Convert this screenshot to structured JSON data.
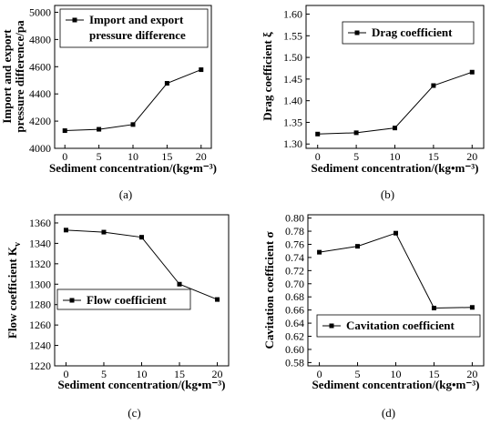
{
  "chart_data": [
    {
      "type": "line",
      "panel_label": "(a)",
      "x": [
        0,
        5,
        10,
        15,
        20
      ],
      "xticks": [
        "0",
        "5",
        "10",
        "15",
        "20"
      ],
      "xlim": [
        -1.5,
        21.5
      ],
      "xlabel": "Sediment concentration/(kg•m⁻³)",
      "ylabel_lines": [
        "Import and export",
        "pressure difference/pa"
      ],
      "ylim": [
        4000,
        5050
      ],
      "yticks": [
        "4000",
        "4200",
        "4400",
        "4600",
        "4800",
        "5000"
      ],
      "ytick_values": [
        4000,
        4200,
        4400,
        4600,
        4800,
        5000
      ],
      "series": [
        {
          "name_lines": [
            "Import and export",
            "pressure difference"
          ],
          "values": [
            4130,
            4140,
            4175,
            4478,
            4578
          ]
        }
      ],
      "legend_position": "top-left"
    },
    {
      "type": "line",
      "panel_label": "(b)",
      "x": [
        0,
        5,
        10,
        15,
        20
      ],
      "xticks": [
        "0",
        "5",
        "10",
        "15",
        "20"
      ],
      "xlim": [
        -1.5,
        21.5
      ],
      "xlabel": "Sediment concentration/(kg•m⁻³)",
      "ylabel": "Drag coefficient ξ",
      "ylim": [
        1.29,
        1.62
      ],
      "yticks": [
        "1.30",
        "1.35",
        "1.40",
        "1.45",
        "1.50",
        "1.55",
        "1.60"
      ],
      "ytick_values": [
        1.3,
        1.35,
        1.4,
        1.45,
        1.5,
        1.55,
        1.6
      ],
      "series": [
        {
          "name": "Drag coefficient",
          "values": [
            1.323,
            1.326,
            1.337,
            1.435,
            1.466
          ]
        }
      ],
      "legend_position": "top-right"
    },
    {
      "type": "line",
      "panel_label": "(c)",
      "x": [
        0,
        5,
        10,
        15,
        20
      ],
      "xticks": [
        "0",
        "5",
        "10",
        "15",
        "20"
      ],
      "xlim": [
        -1.5,
        21.5
      ],
      "xlabel": "Sediment concentration/(kg•m⁻³)",
      "ylabel": "Flow coefficient Kv",
      "ylabel_main": "Flow coefficient K",
      "ylabel_sub": "v",
      "ylim": [
        1220,
        1368
      ],
      "yticks": [
        "1220",
        "1240",
        "1260",
        "1280",
        "1300",
        "1320",
        "1340",
        "1360"
      ],
      "ytick_values": [
        1220,
        1240,
        1260,
        1280,
        1300,
        1320,
        1340,
        1360
      ],
      "series": [
        {
          "name": "Flow coefficient",
          "values": [
            1353,
            1351,
            1346,
            1300,
            1285
          ]
        }
      ],
      "legend_position": "center-right"
    },
    {
      "type": "line",
      "panel_label": "(d)",
      "x": [
        0,
        5,
        10,
        15,
        20
      ],
      "xticks": [
        "0",
        "5",
        "10",
        "15",
        "20"
      ],
      "xlim": [
        -1.5,
        21.5
      ],
      "xlabel": "Sediment concentration/(kg•m⁻³)",
      "ylabel": "Cavitation coefficient σ",
      "ylim": [
        0.575,
        0.805
      ],
      "yticks": [
        "0.58",
        "0.60",
        "0.62",
        "0.64",
        "0.66",
        "0.68",
        "0.70",
        "0.72",
        "0.74",
        "0.76",
        "0.78",
        "0.80"
      ],
      "ytick_values": [
        0.58,
        0.6,
        0.62,
        0.64,
        0.66,
        0.68,
        0.7,
        0.72,
        0.74,
        0.76,
        0.78,
        0.8
      ],
      "series": [
        {
          "name": "Cavitation coefficient",
          "values": [
            0.748,
            0.757,
            0.777,
            0.663,
            0.664
          ]
        }
      ],
      "legend_position": "bottom-center"
    }
  ]
}
